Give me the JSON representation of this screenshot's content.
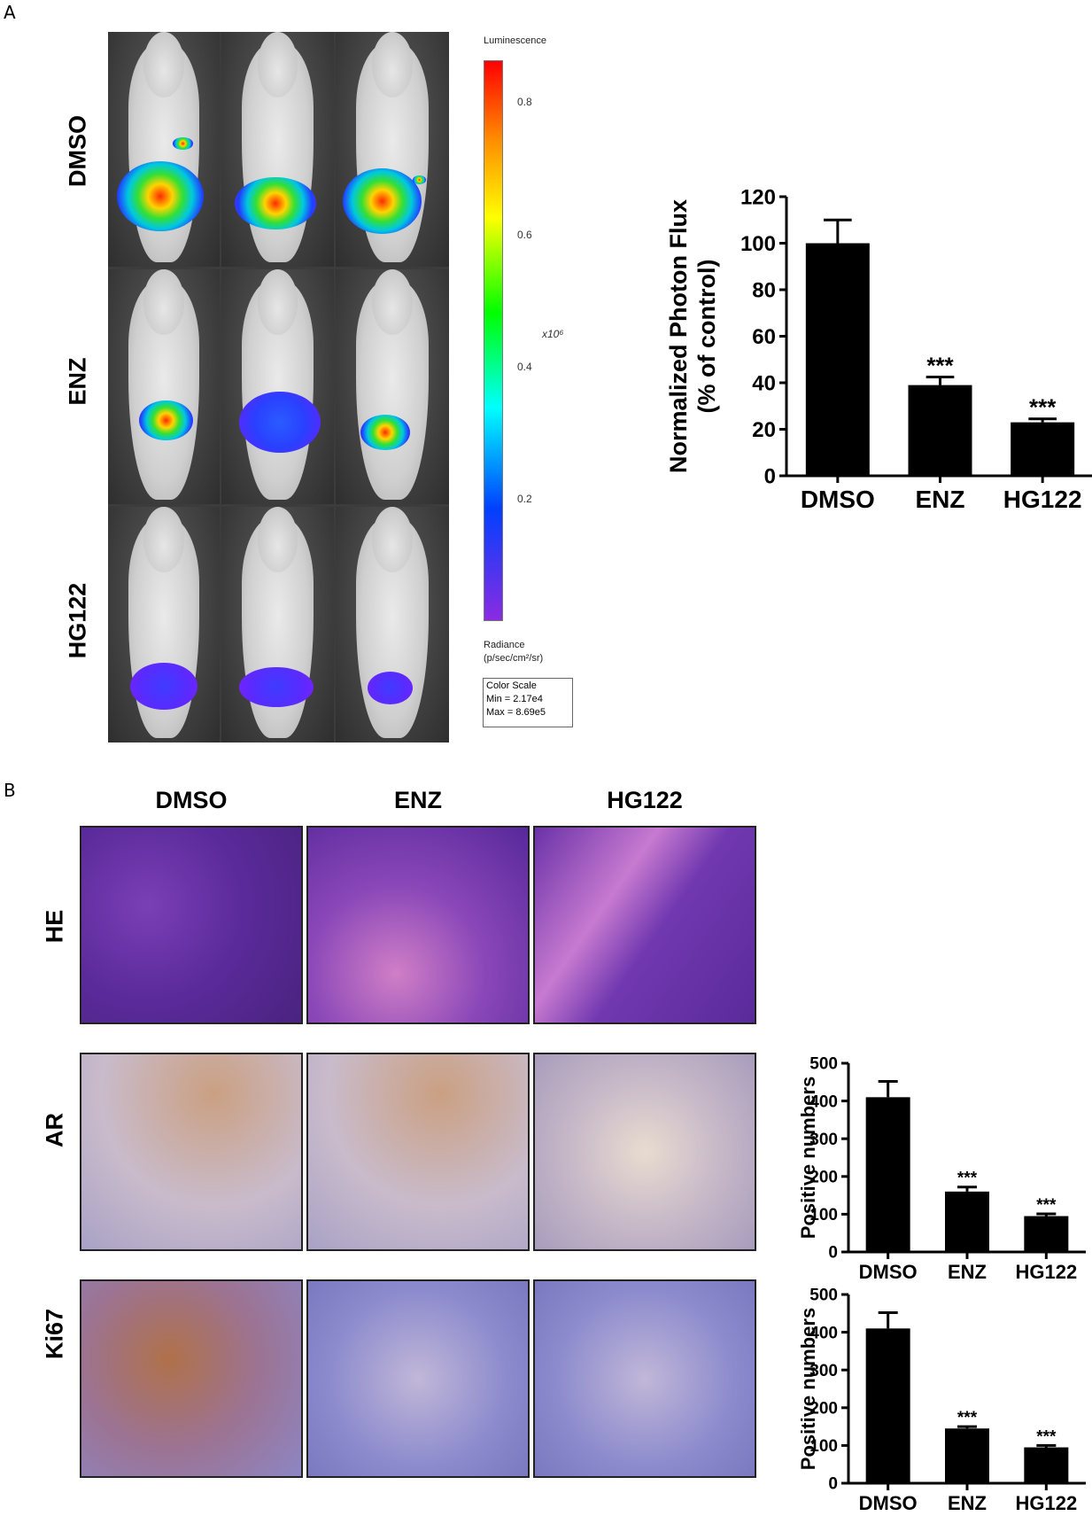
{
  "panel_a": {
    "letter": "A",
    "row_labels": [
      "DMSO",
      "ENZ",
      "HG122"
    ],
    "colorbar": {
      "title": "Luminescence",
      "ticks": [
        "0.8",
        "0.6",
        "0.4",
        "0.2"
      ],
      "exponent_label": "x10⁶",
      "radiance_label_1": "Radiance",
      "radiance_label_2": "(p/sec/cm²/sr)",
      "scale_box": {
        "line1": "Color Scale",
        "line2": "Min = 2.17e4",
        "line3": "Max = 8.69e5"
      }
    }
  },
  "panel_b": {
    "letter": "B",
    "col_labels": [
      "DMSO",
      "ENZ",
      "HG122"
    ],
    "row_labels": [
      "HE",
      "AR",
      "Ki67"
    ]
  },
  "chart_data": [
    {
      "id": "photon-flux",
      "type": "bar",
      "categories": [
        "DMSO",
        "ENZ",
        "HG122"
      ],
      "values": [
        100,
        39,
        23
      ],
      "errors": [
        10,
        3.5,
        1.5
      ],
      "annotations": [
        "",
        "***",
        "***"
      ],
      "ylabel_line1": "Normalized Photon Flux",
      "ylabel_line2": "(% of control)",
      "ylim": [
        0,
        120
      ],
      "yticks": [
        0,
        20,
        40,
        60,
        80,
        100,
        120
      ],
      "bar_color": "#000000",
      "grid": false
    },
    {
      "id": "ar-positive",
      "type": "bar",
      "categories": [
        "DMSO",
        "ENZ",
        "HG122"
      ],
      "values": [
        410,
        160,
        95
      ],
      "errors": [
        42,
        12,
        6
      ],
      "annotations": [
        "",
        "***",
        "***"
      ],
      "ylabel": "Positive numbers",
      "ylim": [
        0,
        500
      ],
      "yticks": [
        0,
        100,
        200,
        300,
        400,
        500
      ],
      "bar_color": "#000000",
      "grid": false
    },
    {
      "id": "ki67-positive",
      "type": "bar",
      "categories": [
        "DMSO",
        "ENZ",
        "HG122"
      ],
      "values": [
        410,
        145,
        95
      ],
      "errors": [
        42,
        5,
        5
      ],
      "annotations": [
        "",
        "***",
        "***"
      ],
      "ylabel": "Positive numbers",
      "ylim": [
        0,
        500
      ],
      "yticks": [
        0,
        100,
        200,
        300,
        400,
        500
      ],
      "bar_color": "#000000",
      "grid": false
    }
  ]
}
